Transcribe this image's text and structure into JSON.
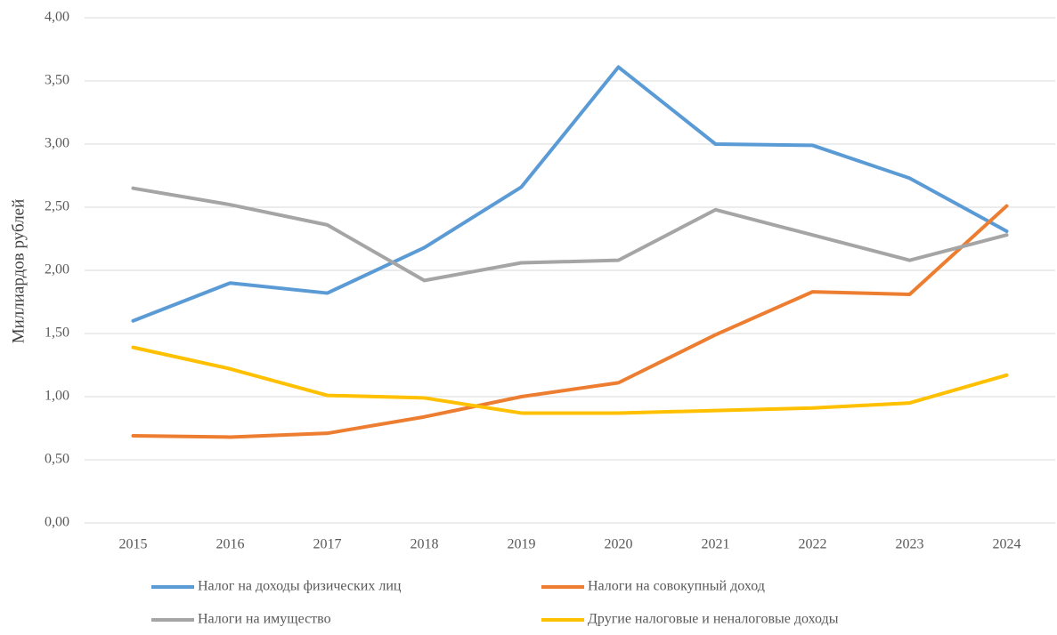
{
  "chart_data": {
    "type": "line",
    "y_label": "Миллиардов рублей",
    "categories": [
      "2015",
      "2016",
      "2017",
      "2018",
      "2019",
      "2020",
      "2021",
      "2022",
      "2023",
      "2024"
    ],
    "series": [
      {
        "name": "Налог на доходы физических лиц",
        "color": "#5b9bd5",
        "values": [
          1.6,
          1.9,
          1.82,
          2.18,
          2.66,
          3.61,
          3.0,
          2.99,
          2.73,
          2.31
        ]
      },
      {
        "name": "Налоги на совокупный доход",
        "color": "#ed7d31",
        "values": [
          0.69,
          0.68,
          0.71,
          0.84,
          1.0,
          1.11,
          1.49,
          1.83,
          1.81,
          2.51
        ]
      },
      {
        "name": "Налоги на имущество",
        "color": "#a5a5a5",
        "values": [
          2.65,
          2.52,
          2.36,
          1.92,
          2.06,
          2.08,
          2.48,
          2.28,
          2.08,
          2.28
        ]
      },
      {
        "name": "Другие налоговые и неналоговые доходы",
        "color": "#ffc000",
        "values": [
          1.39,
          1.22,
          1.01,
          0.99,
          0.87,
          0.87,
          0.89,
          0.91,
          0.95,
          1.17
        ]
      }
    ],
    "ylim": [
      0,
      4
    ],
    "yticks": [
      {
        "value": 0,
        "label": "0,00"
      },
      {
        "value": 0.5,
        "label": "0,50"
      },
      {
        "value": 1,
        "label": "1,00"
      },
      {
        "value": 1.5,
        "label": "1,50"
      },
      {
        "value": 2,
        "label": "2,00"
      },
      {
        "value": 2.5,
        "label": "2,50"
      },
      {
        "value": 3,
        "label": "3,00"
      },
      {
        "value": 3.5,
        "label": "3,50"
      },
      {
        "value": 4,
        "label": "4,00"
      }
    ],
    "grid": true
  }
}
